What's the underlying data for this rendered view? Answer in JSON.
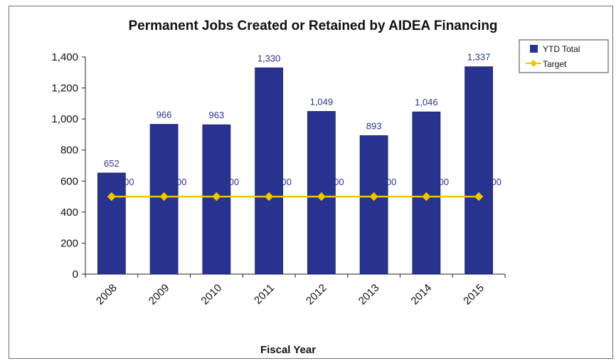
{
  "chart_data": {
    "type": "bar",
    "title": "Permanent Jobs Created or Retained by AIDEA Financing",
    "xlabel": "Fiscal Year",
    "ylabel": "",
    "categories": [
      "2008",
      "2009",
      "2010",
      "2011",
      "2012",
      "2013",
      "2014",
      "2015"
    ],
    "series": [
      {
        "name": "YTD Total",
        "kind": "bar",
        "color": "#27338f",
        "values": [
          652,
          966,
          963,
          1330,
          1049,
          893,
          1046,
          1337
        ],
        "labels": [
          "652",
          "966",
          "963",
          "1,330",
          "1,049",
          "893",
          "1,046",
          "1,337"
        ]
      },
      {
        "name": "Target",
        "kind": "line",
        "color": "#f2c500",
        "values": [
          500,
          500,
          500,
          500,
          500,
          500,
          500,
          500
        ]
      }
    ],
    "ylim": [
      0,
      1400
    ],
    "yticks": [
      0,
      200,
      400,
      600,
      800,
      1000,
      1200,
      1400
    ],
    "ytick_labels": [
      "0",
      "200",
      "400",
      "600",
      "800",
      "1,000",
      "1,200",
      "1,400"
    ],
    "grid": false,
    "legend_position": "top-right"
  }
}
